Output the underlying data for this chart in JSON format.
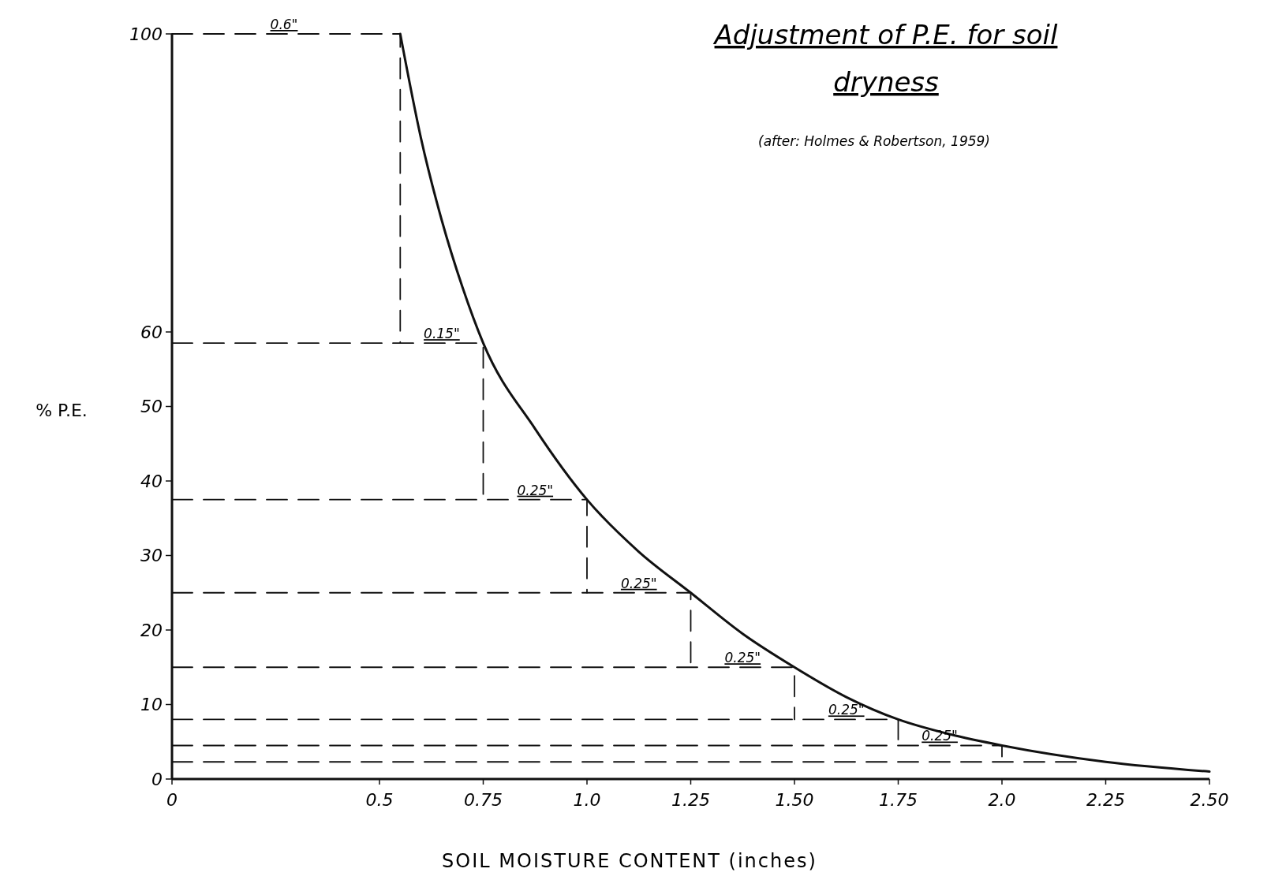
{
  "chart_data": {
    "type": "line",
    "title": "Adjustment of P.E. for soil dryness",
    "subtitle": "(after: Holmes & Robertson, 1959)",
    "xlabel": "SOIL MOISTURE CONTENT (inches)",
    "ylabel": "% P.E.",
    "xlim": [
      0,
      2.5
    ],
    "ylim": [
      0,
      100
    ],
    "xticks": [
      0,
      {
        "value": 0.5,
        "label": "0.5"
      },
      0.75,
      {
        "value": 1,
        "label": "1.0"
      },
      1.25,
      {
        "value": 1.5,
        "label": "1.50"
      },
      1.75,
      {
        "value": 2,
        "label": "2.0"
      },
      2.25,
      {
        "value": 2.5,
        "label": "2.50"
      }
    ],
    "yticks": [
      0,
      10,
      20,
      30,
      40,
      50,
      60,
      100
    ],
    "grid": false,
    "marker": "none",
    "series": [
      {
        "color": "#111111",
        "line_style": "solid",
        "x": [
          0.55,
          0.6,
          0.65,
          0.7,
          0.75,
          0.875,
          1,
          1.125,
          1.25,
          1.375,
          1.5,
          1.625,
          1.75,
          1.875,
          2,
          2.25,
          2.5
        ],
        "values": [
          100,
          86,
          75,
          66,
          58.5,
          47,
          37.5,
          30.5,
          25,
          19.5,
          15,
          11,
          8,
          6,
          4.5,
          2.3,
          1
        ]
      },
      {
        "color": "#111111",
        "line_style": "dashed",
        "x": [
          0,
          0.55,
          0.55
        ],
        "values": [
          100,
          100,
          58.5
        ]
      },
      {
        "color": "#111111",
        "line_style": "dashed",
        "x": [
          0,
          0.75,
          0.75
        ],
        "values": [
          58.5,
          58.5,
          37.5
        ]
      },
      {
        "color": "#111111",
        "line_style": "dashed",
        "x": [
          0,
          1,
          1
        ],
        "values": [
          37.5,
          37.5,
          25
        ]
      },
      {
        "color": "#111111",
        "line_style": "dashed",
        "x": [
          0,
          1.25,
          1.25
        ],
        "values": [
          25,
          25,
          15
        ]
      },
      {
        "color": "#111111",
        "line_style": "dashed",
        "x": [
          0,
          1.5,
          1.5
        ],
        "values": [
          15,
          15,
          8
        ]
      },
      {
        "color": "#111111",
        "line_style": "dashed",
        "x": [
          0,
          1.75,
          1.75
        ],
        "values": [
          8,
          8,
          4.5
        ]
      },
      {
        "color": "#111111",
        "line_style": "dashed",
        "x": [
          0,
          2,
          2
        ],
        "values": [
          4.5,
          4.5,
          2.3
        ]
      },
      {
        "color": "#111111",
        "line_style": "dashed",
        "x": [
          0,
          2.2
        ],
        "values": [
          2.3,
          2.3
        ]
      }
    ],
    "annotations": [
      {
        "text": "0.6\"",
        "x": 0.27,
        "y": 100
      },
      {
        "text": "0.15\"",
        "x": 0.65,
        "y": 58.5
      },
      {
        "text": "0.25\"",
        "x": 0.875,
        "y": 37.5
      },
      {
        "text": "0.25\"",
        "x": 1.125,
        "y": 25
      },
      {
        "text": "0.25\"",
        "x": 1.375,
        "y": 15
      },
      {
        "text": "0.25\"",
        "x": 1.625,
        "y": 8
      },
      {
        "text": "0.25\"",
        "x": 1.85,
        "y": 4.5
      }
    ]
  }
}
